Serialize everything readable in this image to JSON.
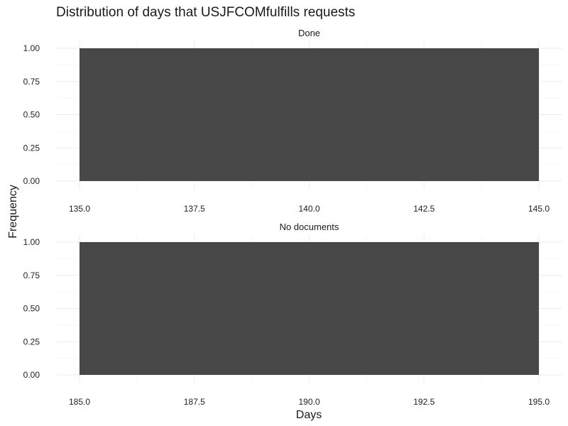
{
  "chart_data": {
    "type": "bar",
    "title": "Distribution of days that USJFCOMfulfills requests",
    "xlabel": "Days",
    "ylabel": "Frequency",
    "grid": true,
    "bar_color": "#474747",
    "panels": [
      {
        "name": "Done",
        "bins": [
          {
            "x_start": 135,
            "x_end": 145,
            "count": 1
          }
        ],
        "xlim": [
          135,
          145
        ],
        "x_ticks": [
          "135.0",
          "137.5",
          "140.0",
          "142.5",
          "145.0"
        ],
        "x_tick_values": [
          135,
          137.5,
          140,
          142.5,
          145
        ],
        "ylim": [
          0,
          1
        ],
        "y_ticks": [
          "0.00",
          "0.25",
          "0.50",
          "0.75",
          "1.00"
        ],
        "y_tick_values": [
          0,
          0.25,
          0.5,
          0.75,
          1
        ]
      },
      {
        "name": "No documents",
        "bins": [
          {
            "x_start": 185,
            "x_end": 195,
            "count": 1
          }
        ],
        "xlim": [
          185,
          195
        ],
        "x_ticks": [
          "185.0",
          "187.5",
          "190.0",
          "192.5",
          "195.0"
        ],
        "x_tick_values": [
          185,
          187.5,
          190,
          192.5,
          195
        ],
        "ylim": [
          0,
          1
        ],
        "y_ticks": [
          "0.00",
          "0.25",
          "0.50",
          "0.75",
          "1.00"
        ],
        "y_tick_values": [
          0,
          0.25,
          0.5,
          0.75,
          1
        ]
      }
    ]
  }
}
